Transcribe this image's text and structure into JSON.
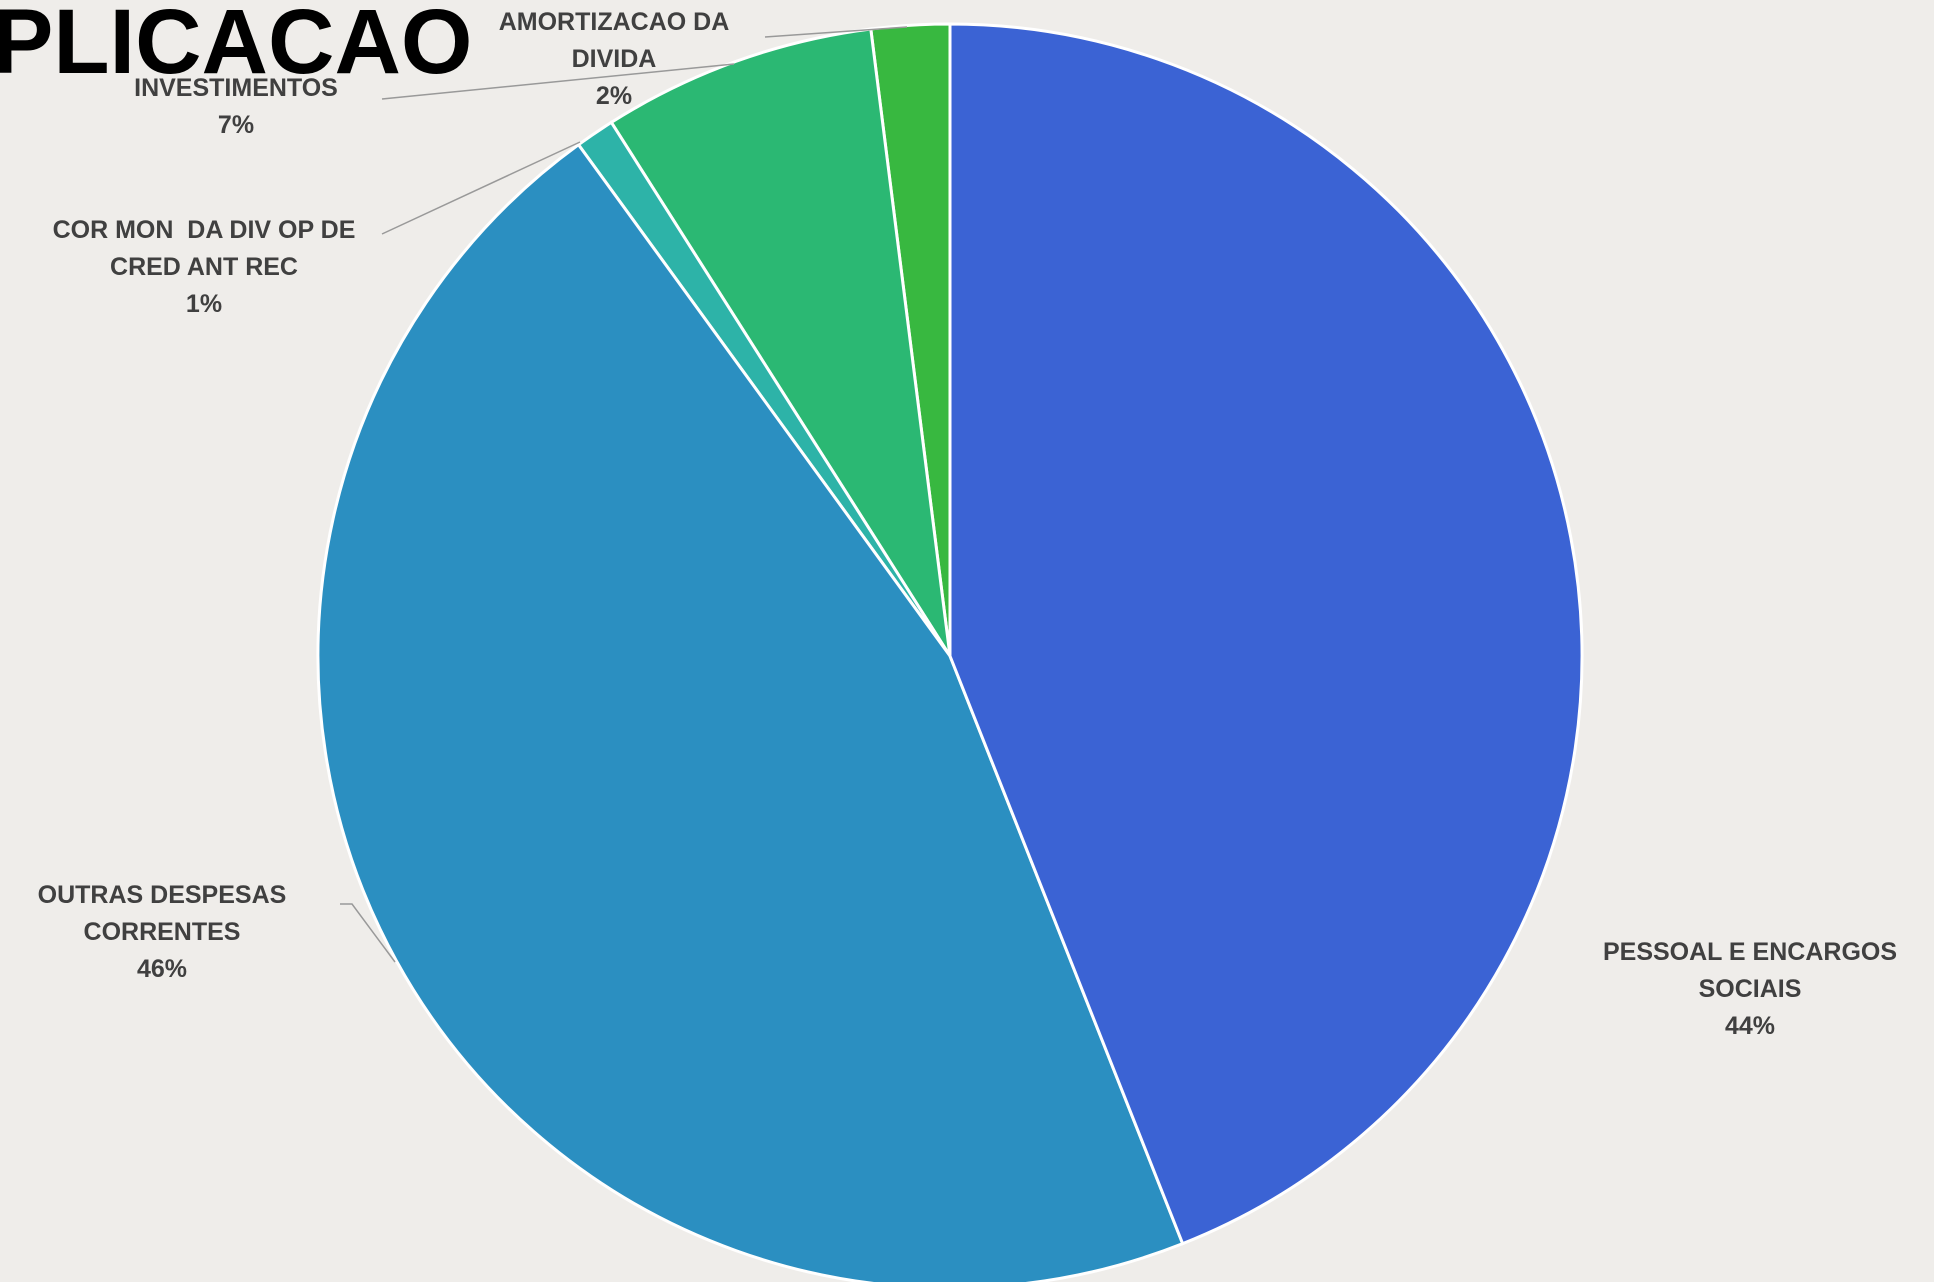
{
  "chart_data": {
    "type": "pie",
    "title": "PLICACAO",
    "categories": [
      "PESSOAL E ENCARGOS SOCIAIS",
      "OUTRAS DESPESAS CORRENTES",
      "COR MON  DA DIV OP DE CRED ANT REC",
      "INVESTIMENTOS",
      "AMORTIZACAO DA DIVIDA"
    ],
    "values": [
      44,
      46,
      1,
      7,
      2
    ],
    "value_labels": [
      "44%",
      "46%",
      "1%",
      "7%",
      "2%"
    ],
    "colors": [
      "#3b63d4",
      "#2b8fc1",
      "#2db3a8",
      "#2bb873",
      "#38b840"
    ]
  }
}
